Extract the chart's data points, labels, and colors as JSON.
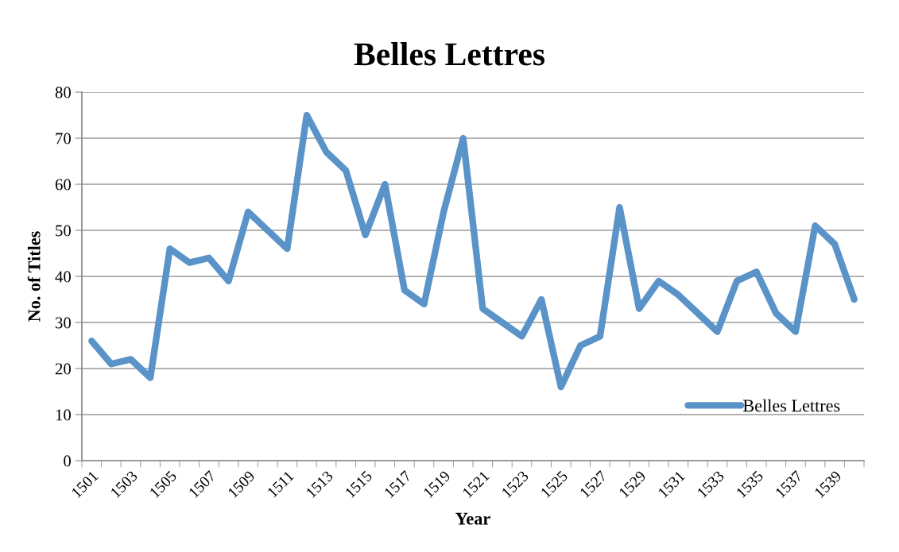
{
  "chart_data": {
    "type": "line",
    "title": "Belles Lettres",
    "xlabel": "Year",
    "ylabel": "No. of Titles",
    "categories": [
      "1501",
      null,
      "1503",
      null,
      "1505",
      null,
      "1507",
      null,
      "1509",
      null,
      "1511",
      null,
      "1513",
      null,
      "1515",
      null,
      "1517",
      null,
      "1519",
      null,
      "1521",
      null,
      "1523",
      null,
      "1525",
      null,
      "1527",
      null,
      "1529",
      null,
      "1531",
      null,
      "1533",
      null,
      "1535",
      null,
      "1537",
      null,
      "1539",
      null
    ],
    "series": [
      {
        "name": "Belles Lettres",
        "color": "#5a93c8",
        "values": [
          26,
          21,
          22,
          18,
          46,
          43,
          44,
          39,
          54,
          50,
          46,
          75,
          67,
          63,
          49,
          60,
          37,
          34,
          54,
          70,
          33,
          30,
          27,
          35,
          16,
          25,
          27,
          55,
          33,
          39,
          36,
          32,
          28,
          39,
          41,
          32,
          28,
          51,
          47,
          35
        ]
      }
    ],
    "ylim": [
      0,
      80
    ],
    "yticks": [
      0,
      10,
      20,
      30,
      40,
      50,
      60,
      70,
      80
    ],
    "grid": "y",
    "legend": "lower right",
    "marker": "none",
    "line_style": "solid"
  }
}
